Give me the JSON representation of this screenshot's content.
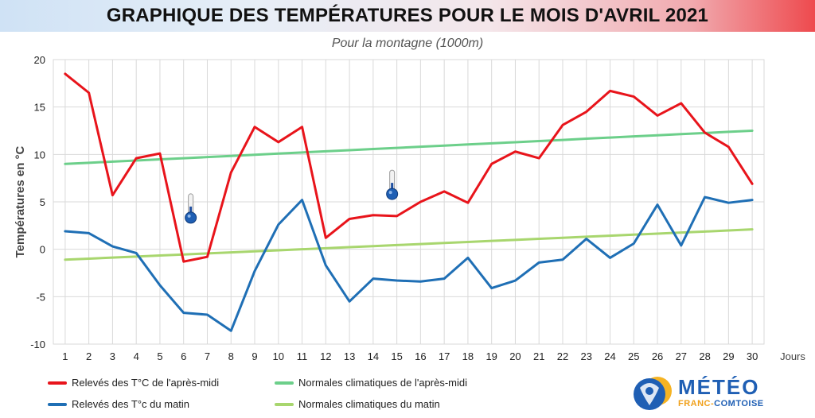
{
  "title": "GRAPHIQUE DES TEMPÉRATURES POUR LE MOIS D'AVRIL 2021",
  "subtitle": "Pour la montagne (1000m)",
  "colors": {
    "afternoon": "#e8141b",
    "morning": "#1f6fb5",
    "normal_afternoon": "#6ccf8a",
    "normal_morning": "#a8d66e",
    "grid": "#d9d9d9"
  },
  "chart_data": {
    "type": "line",
    "title": "GRAPHIQUE DES TEMPÉRATURES POUR LE MOIS D'AVRIL 2021",
    "subtitle": "Pour la montagne (1000m)",
    "xlabel": "Jours",
    "ylabel": "Températures en °C",
    "x": [
      1,
      2,
      3,
      4,
      5,
      6,
      7,
      8,
      9,
      10,
      11,
      12,
      13,
      14,
      15,
      16,
      17,
      18,
      19,
      20,
      21,
      22,
      23,
      24,
      25,
      26,
      27,
      28,
      29,
      30
    ],
    "x_ticks": [
      "1",
      "2",
      "3",
      "4",
      "5",
      "6",
      "7",
      "8",
      "9",
      "10",
      "11",
      "12",
      "13",
      "14",
      "15",
      "16",
      "17",
      "18",
      "19",
      "20",
      "21",
      "22",
      "23",
      "24",
      "25",
      "26",
      "27",
      "28",
      "29",
      "30"
    ],
    "ylim": [
      -10,
      20
    ],
    "y_ticks": [
      "-10",
      "-5",
      "0",
      "5",
      "10",
      "15",
      "20"
    ],
    "grid": true,
    "legend_position": "bottom",
    "series": [
      {
        "name": "Relevés des T°C de l'après-midi",
        "color": "#e8141b",
        "values": [
          18.5,
          16.5,
          5.7,
          9.6,
          10.1,
          -1.3,
          -0.8,
          8.1,
          12.9,
          11.3,
          12.9,
          1.2,
          3.2,
          3.6,
          3.5,
          5.0,
          6.1,
          4.9,
          9.0,
          10.3,
          9.6,
          13.1,
          14.5,
          16.7,
          16.1,
          14.1,
          15.4,
          12.3,
          10.8,
          6.9
        ]
      },
      {
        "name": "Relevés des T°c du matin",
        "color": "#1f6fb5",
        "values": [
          1.9,
          1.7,
          0.3,
          -0.4,
          -3.8,
          -6.7,
          -6.9,
          -8.6,
          -2.3,
          2.6,
          5.2,
          -1.7,
          -5.5,
          -3.1,
          -3.3,
          -3.4,
          -3.1,
          -0.9,
          -4.1,
          -3.3,
          -1.4,
          -1.1,
          1.1,
          -0.9,
          0.6,
          4.7,
          0.4,
          5.5,
          4.9,
          5.2
        ]
      },
      {
        "name": "Normales climatiques de l'après-midi",
        "color": "#6ccf8a",
        "values": [
          9.0,
          9.12,
          9.24,
          9.36,
          9.48,
          9.6,
          9.72,
          9.84,
          9.97,
          10.09,
          10.21,
          10.33,
          10.45,
          10.57,
          10.69,
          10.81,
          10.93,
          11.05,
          11.17,
          11.29,
          11.41,
          11.53,
          11.66,
          11.78,
          11.9,
          12.02,
          12.14,
          12.26,
          12.38,
          12.5
        ]
      },
      {
        "name": "Normales climatiques du matin",
        "color": "#a8d66e",
        "values": [
          -1.1,
          -0.99,
          -0.88,
          -0.77,
          -0.66,
          -0.55,
          -0.44,
          -0.33,
          -0.22,
          -0.11,
          0.0,
          0.11,
          0.22,
          0.33,
          0.44,
          0.55,
          0.66,
          0.77,
          0.88,
          0.99,
          1.1,
          1.21,
          1.32,
          1.43,
          1.54,
          1.65,
          1.76,
          1.87,
          1.98,
          2.1
        ]
      }
    ],
    "thermometer_markers": [
      {
        "x": 6.3,
        "y": 4
      },
      {
        "x": 14.8,
        "y": 6.5
      }
    ]
  },
  "legend": [
    {
      "label": "Relevés des T°C de l'après-midi",
      "color": "#e8141b"
    },
    {
      "label": "Normales climatiques de l'après-midi",
      "color": "#6ccf8a"
    },
    {
      "label": "Relevés des T°c du matin",
      "color": "#1f6fb5"
    },
    {
      "label": "Normales climatiques du matin",
      "color": "#a8d66e"
    }
  ],
  "logo": {
    "line1": "MÉTÉO",
    "line2a": "FRANC-",
    "line2b": "COMTOISE",
    "icon": "lion-sun-logo-icon"
  }
}
